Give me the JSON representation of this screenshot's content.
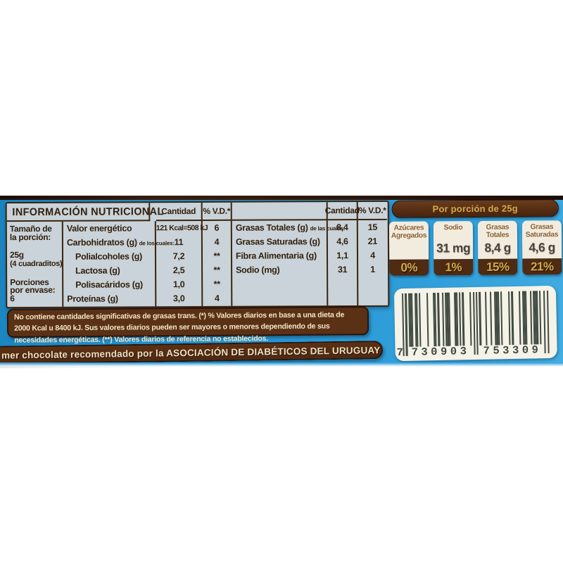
{
  "nutrition_table": {
    "title": "INFORMACIÓN NUTRICIONAL",
    "headers": {
      "cantidad": "Cantidad",
      "vd": "% V.D.*"
    },
    "serving_info": {
      "size_label": "Tamaño de la porción:",
      "size_value": "25g",
      "size_note": "(4 cuadraditos)",
      "servings_label": "Porciones por envase: 6"
    },
    "left_rows": [
      {
        "name": "Valor energético",
        "note": "",
        "cantidad": "121 Kcal=508 kJ",
        "vd": "6"
      },
      {
        "name": "Carbohidratos (g)",
        "note": "de los cuales:",
        "cantidad": "11",
        "vd": "4"
      },
      {
        "name": "Polialcoholes (g)",
        "note": "",
        "cantidad": "7,2",
        "vd": "**"
      },
      {
        "name": "Lactosa (g)",
        "note": "",
        "cantidad": "2,5",
        "vd": "**"
      },
      {
        "name": "Polisacáridos (g)",
        "note": "",
        "cantidad": "1,0",
        "vd": "**"
      },
      {
        "name": "Proteínas (g)",
        "note": "",
        "cantidad": "3,0",
        "vd": "4"
      }
    ],
    "right_rows": [
      {
        "name": "Grasas Totales (g)",
        "note": "de las cuales:",
        "cantidad": "8,4",
        "vd": "15"
      },
      {
        "name": "Grasas Saturadas (g)",
        "note": "",
        "cantidad": "4,6",
        "vd": "21"
      },
      {
        "name": "Fibra Alimentaria (g)",
        "note": "",
        "cantidad": "1,1",
        "vd": "4"
      },
      {
        "name": "Sodio (mg)",
        "note": "",
        "cantidad": "31",
        "vd": "1"
      }
    ],
    "footnote": "No contiene cantidades significativas de grasas trans. (*) % Valores diarios en base a una dieta de 2000 Kcal u 8400 kJ. Sus valores diarios pueden ser mayores o menores dependiendo de sus necesidades energéticas. (**) Valores diarios de referencia no establecidos."
  },
  "gda": {
    "header": "Por porción de 25g",
    "badges": [
      {
        "label": "Azúcares Agregados",
        "amount": "",
        "percent": "0%"
      },
      {
        "label": "Sodio",
        "amount": "31 mg",
        "percent": "1%"
      },
      {
        "label": "Grasas Totales",
        "amount": "8,4 g",
        "percent": "15%"
      },
      {
        "label": "Grasas Saturadas",
        "amount": "4,6 g",
        "percent": "21%"
      }
    ]
  },
  "barcode": {
    "digits": "7730903753309",
    "display": [
      "7",
      "730903",
      "753309"
    ]
  },
  "banner": {
    "text": "mer chocolate recomendado por la ASOCIACIÓN DE DIABÉTICOS DEL URUGUAY"
  },
  "colors": {
    "blue": "#2292d0",
    "topline": "#2a140a",
    "panel": "#c9d3d9",
    "ink": "#33200e",
    "border": "#3a2411",
    "footnote_bg": "#5b3116",
    "strip_bg": "#4f2911",
    "pill_bg": "#46230e",
    "badge_cream": "#f2ecdf",
    "badge_brown": "#4e2b12",
    "badge_label": "#8a6132",
    "amount": "#4b443e",
    "gold": "#d2a94a",
    "cream": "#f0e4c4",
    "barcode_bg": "#f5f2e7",
    "bar": "#414b42"
  }
}
